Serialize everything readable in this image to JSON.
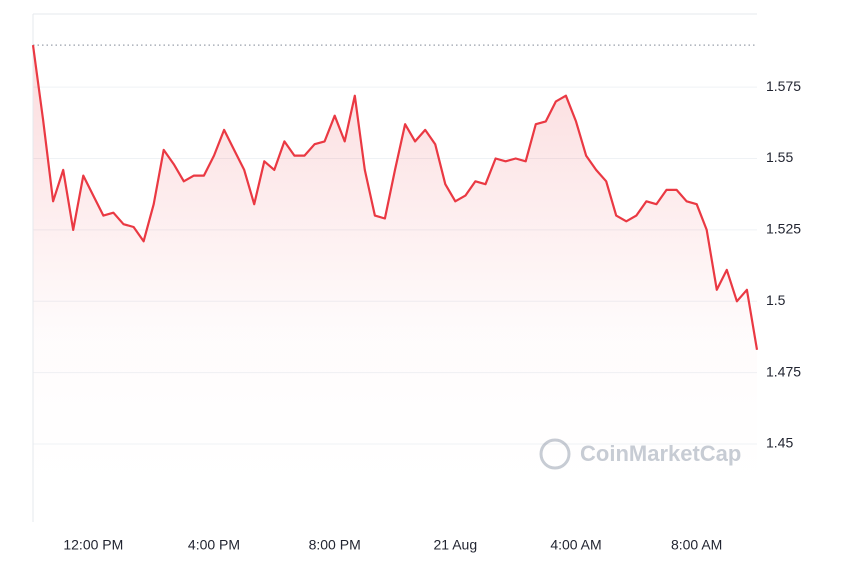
{
  "chart_data": {
    "type": "line",
    "watermark": "CoinMarketCap",
    "categories": [
      null,
      null,
      null,
      null,
      null,
      null,
      "12:00 PM",
      null,
      null,
      null,
      null,
      null,
      null,
      null,
      null,
      null,
      null,
      null,
      "4:00 PM",
      null,
      null,
      null,
      null,
      null,
      null,
      null,
      null,
      null,
      null,
      null,
      "8:00 PM",
      null,
      null,
      null,
      null,
      null,
      null,
      null,
      null,
      null,
      null,
      null,
      "21 Aug",
      null,
      null,
      null,
      null,
      null,
      null,
      null,
      null,
      null,
      null,
      null,
      "4:00 AM",
      null,
      null,
      null,
      null,
      null,
      null,
      null,
      null,
      null,
      null,
      null,
      "8:00 AM",
      null,
      null,
      null,
      null,
      null,
      null
    ],
    "series": [
      {
        "color": "#ea3943",
        "values": [
          1.5897,
          1.5635,
          1.535,
          1.546,
          1.525,
          1.544,
          1.537,
          1.53,
          1.531,
          1.527,
          1.526,
          1.521,
          1.534,
          1.553,
          1.548,
          1.542,
          1.544,
          1.544,
          1.551,
          1.56,
          1.553,
          1.546,
          1.534,
          1.549,
          1.546,
          1.556,
          1.551,
          1.551,
          1.555,
          1.556,
          1.565,
          1.556,
          1.572,
          1.546,
          1.53,
          1.529,
          1.546,
          1.562,
          1.556,
          1.56,
          1.555,
          1.541,
          1.535,
          1.537,
          1.542,
          1.541,
          1.55,
          1.549,
          1.55,
          1.549,
          1.562,
          1.563,
          1.57,
          1.572,
          1.563,
          1.551,
          1.546,
          1.542,
          1.53,
          1.528,
          1.53,
          1.535,
          1.534,
          1.539,
          1.539,
          1.535,
          1.534,
          1.525,
          1.504,
          1.511,
          1.5,
          1.504,
          1.483
        ]
      }
    ],
    "ylim": [
      1.4227,
      1.6006
    ],
    "yticks": [
      1.45,
      1.475,
      1.5,
      1.525,
      1.55,
      1.575
    ],
    "grid": true
  }
}
